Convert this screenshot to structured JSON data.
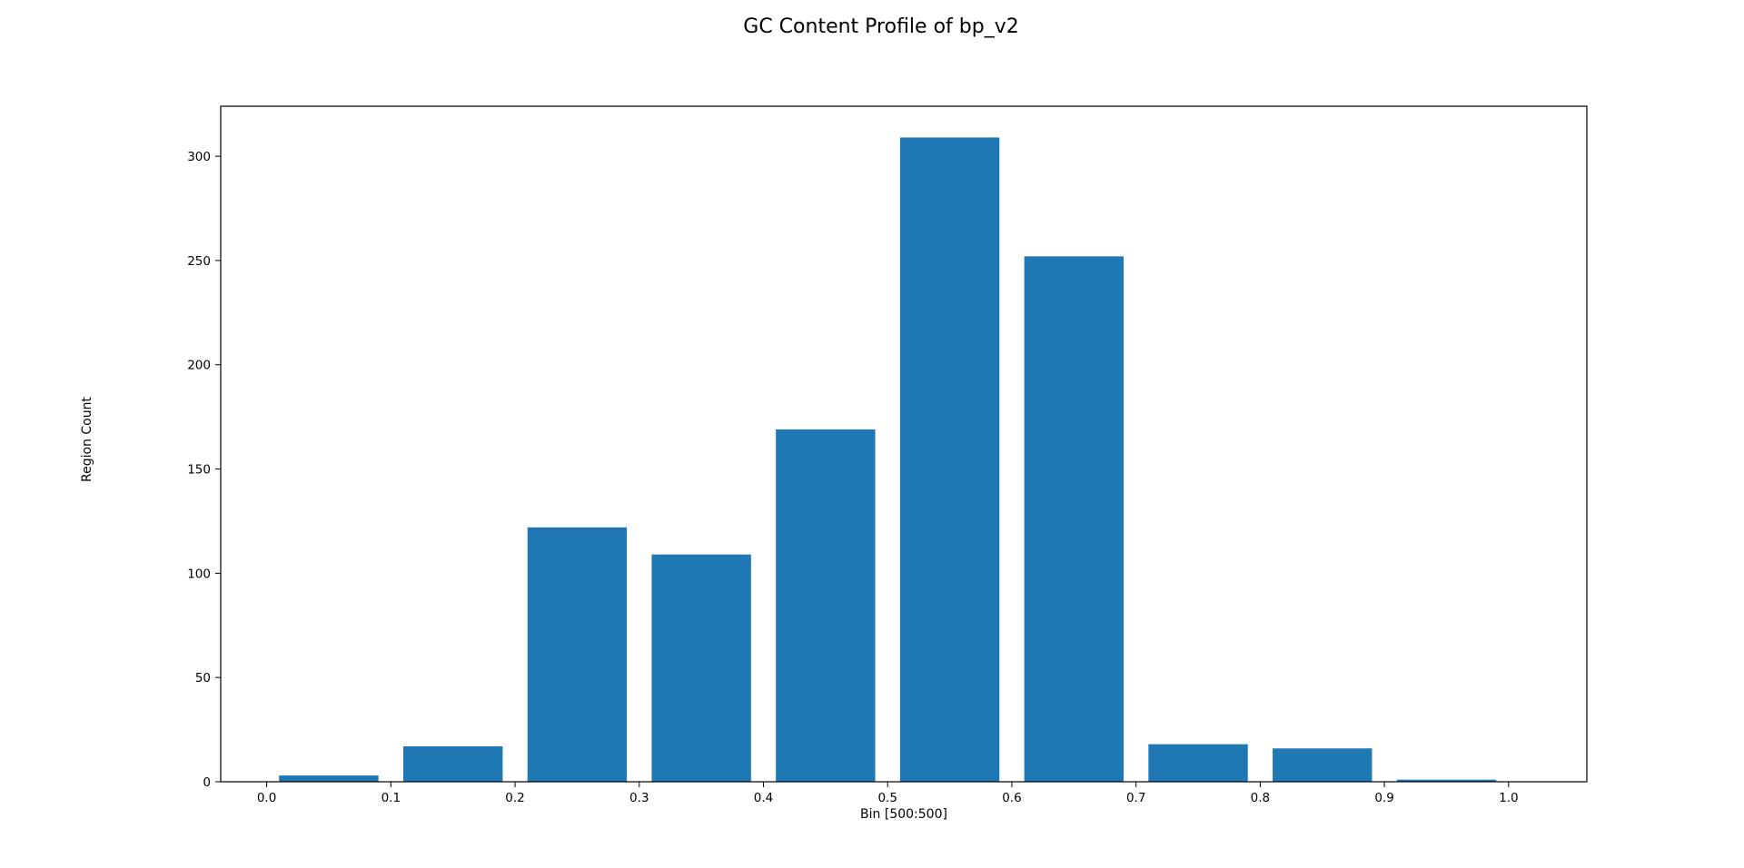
{
  "chart_data": {
    "type": "bar",
    "title": "GC Content Profile of bp_v2",
    "xlabel": "Bin [500:500]",
    "ylabel": "Region Count",
    "x": [
      0.05,
      0.15,
      0.25,
      0.35,
      0.45,
      0.55,
      0.65,
      0.75,
      0.85,
      0.95
    ],
    "values": [
      3,
      17,
      122,
      109,
      169,
      309,
      252,
      18,
      16,
      1
    ],
    "bar_width": 0.08,
    "xlim": [
      -0.037,
      1.063
    ],
    "ylim": [
      0,
      324
    ],
    "xticks": [
      0.0,
      0.1,
      0.2,
      0.3,
      0.4,
      0.5,
      0.6,
      0.7,
      0.8,
      0.9,
      1.0
    ],
    "xtick_labels": [
      "0.0",
      "0.1",
      "0.2",
      "0.3",
      "0.4",
      "0.5",
      "0.6",
      "0.7",
      "0.8",
      "0.9",
      "1.0"
    ],
    "yticks": [
      0,
      50,
      100,
      150,
      200,
      250,
      300
    ],
    "ytick_labels": [
      "0",
      "50",
      "100",
      "150",
      "200",
      "250",
      "300"
    ],
    "grid": false,
    "bar_color": "#1f77b4"
  }
}
